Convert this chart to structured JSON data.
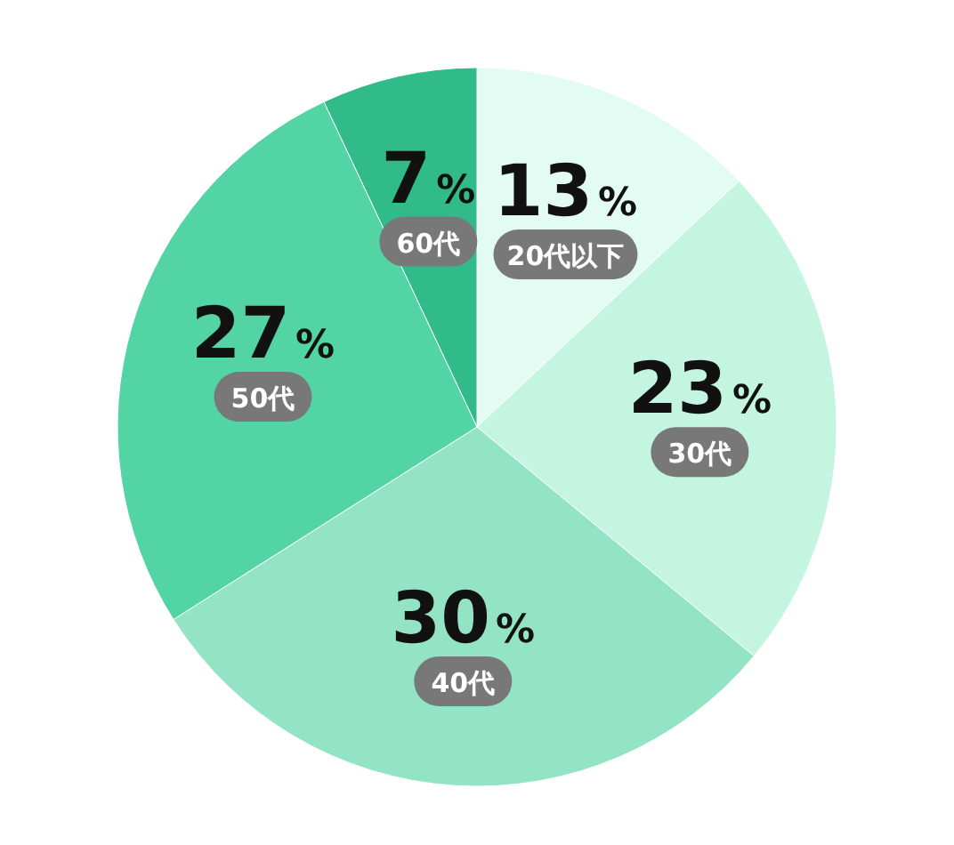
{
  "chart_data": {
    "type": "pie",
    "categories": [
      "20代以下",
      "30代",
      "40代",
      "50代",
      "60代"
    ],
    "values": [
      13,
      23,
      30,
      27,
      7
    ],
    "colors": [
      "#e3fcf3",
      "#c3f5e0",
      "#93e3c5",
      "#52d4a5",
      "#30bb88"
    ],
    "value_labels": [
      "13%",
      "23%",
      "30%",
      "27%",
      "7%"
    ],
    "legend": false
  }
}
